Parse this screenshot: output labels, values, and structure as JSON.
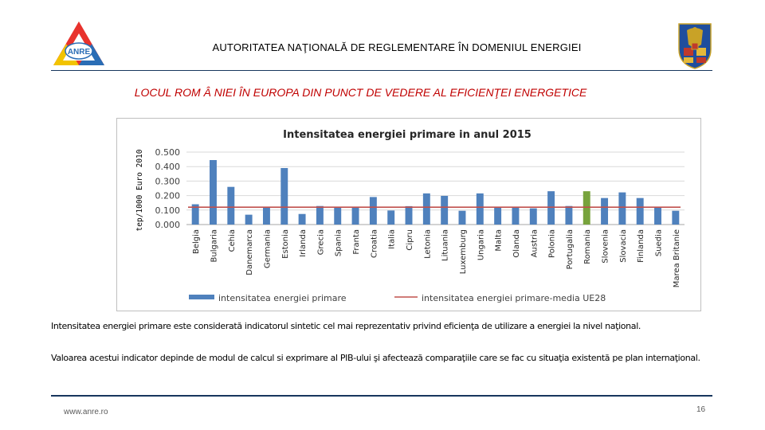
{
  "header": {
    "org_title": "AUTORITATEA NAŢIONALĂ DE REGLEMENTARE ÎN DOMENIUL ENERGIEI",
    "logo_text": "ANRE",
    "logo_icon": "anre-logo-icon",
    "crest_icon": "romania-coat-of-arms-icon"
  },
  "section_title": "LOCUL ROM Â NIEI ÎN EUROPA DIN PUNCT DE VEDERE AL EFICIENŢEI ENERGETICE",
  "chart_data": {
    "type": "bar",
    "title": "Intensitatea energiei primare in anul 2015",
    "ylabel": "tep/1000 Euro 2010",
    "xlabel": "",
    "ylim": [
      0,
      0.5
    ],
    "yticks": [
      "0.000",
      "0.100",
      "0.200",
      "0.300",
      "0.400",
      "0.500"
    ],
    "grid": true,
    "legend_position": "bottom",
    "categories": [
      "Belgia",
      "Bulgaria",
      "Cehia",
      "Danemarca",
      "Germania",
      "Estonia",
      "Irlanda",
      "Grecia",
      "Spania",
      "Franta",
      "Croatia",
      "Italia",
      "Cipru",
      "Letonia",
      "Lituania",
      "Luxemburg",
      "Ungaria",
      "Malta",
      "Olanda",
      "Austria",
      "Polonia",
      "Portugalia",
      "Romania",
      "Slovenia",
      "Slovacia",
      "Finlanda",
      "Suedia",
      "Marea Britanie"
    ],
    "series": [
      {
        "name": "intensitatea energiei primare",
        "color": "#4f81bd",
        "highlight_index": 22,
        "highlight_color": "#77a33c",
        "values": [
          0.14,
          0.445,
          0.26,
          0.068,
          0.12,
          0.39,
          0.073,
          0.128,
          0.12,
          0.12,
          0.19,
          0.097,
          0.127,
          0.215,
          0.198,
          0.095,
          0.215,
          0.12,
          0.12,
          0.112,
          0.23,
          0.128,
          0.23,
          0.183,
          0.222,
          0.183,
          0.12,
          0.095
        ]
      },
      {
        "name": "intensitatea energiei primare-media UE28",
        "type": "line",
        "color": "#c0504d",
        "value": 0.12
      }
    ]
  },
  "paragraphs": {
    "p1": "Intensitatea energiei primare este considerată indicatorul sintetic cel mai reprezentativ privind eficienţa de utilizare a energiei la nivel naţional.",
    "p2": "Valoarea acestui indicator depinde de modul de calcul si exprimare al PIB-ului şi afectează comparaţiile care se fac cu situaţia existentă pe plan internaţional."
  },
  "footer": {
    "url": "www.anre.ro",
    "page_number": "16"
  }
}
